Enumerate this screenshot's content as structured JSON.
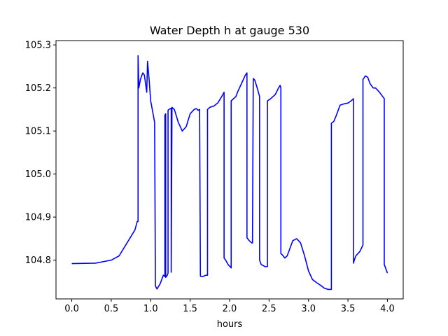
{
  "chart_data": {
    "type": "line",
    "title": "Water Depth h at gauge 530",
    "xlabel": "hours",
    "ylabel": "",
    "xlim": [
      -0.2,
      4.2
    ],
    "ylim": [
      104.71,
      105.31
    ],
    "x_ticks": [
      0.0,
      0.5,
      1.0,
      1.5,
      2.0,
      2.5,
      3.0,
      3.5,
      4.0
    ],
    "x_tick_labels": [
      "0.0",
      "0.5",
      "1.0",
      "1.5",
      "2.0",
      "2.5",
      "3.0",
      "3.5",
      "4.0"
    ],
    "y_ticks": [
      104.8,
      104.9,
      105.0,
      105.1,
      105.2,
      105.3
    ],
    "y_tick_labels": [
      "104.8",
      "104.9",
      "105.0",
      "105.1",
      "105.2",
      "105.3"
    ],
    "grid": false,
    "legend": "none",
    "series": [
      {
        "color": "#0000ff",
        "x": [
          0.0,
          0.3,
          0.5,
          0.6,
          0.7,
          0.8,
          0.83,
          0.84,
          0.84,
          0.85,
          0.87,
          0.9,
          0.92,
          0.95,
          0.96,
          0.98,
          1.0,
          1.05,
          1.06,
          1.08,
          1.12,
          1.16,
          1.18,
          1.18,
          1.19,
          1.19,
          1.21,
          1.22,
          1.22,
          1.23,
          1.25,
          1.26,
          1.26,
          1.27,
          1.3,
          1.35,
          1.4,
          1.45,
          1.5,
          1.55,
          1.58,
          1.6,
          1.62,
          1.63,
          1.64,
          1.66,
          1.7,
          1.72,
          1.72,
          1.75,
          1.8,
          1.85,
          1.9,
          1.93,
          1.93,
          1.95,
          1.98,
          2.02,
          2.02,
          2.05,
          2.08,
          2.1,
          2.15,
          2.2,
          2.22,
          2.22,
          2.25,
          2.28,
          2.29,
          2.3,
          2.32,
          2.35,
          2.38,
          2.38,
          2.4,
          2.45,
          2.48,
          2.48,
          2.52,
          2.55,
          2.58,
          2.62,
          2.64,
          2.65,
          2.65,
          2.67,
          2.7,
          2.73,
          2.76,
          2.8,
          2.85,
          2.9,
          2.95,
          3.0,
          3.05,
          3.1,
          3.15,
          3.2,
          3.25,
          3.28,
          3.29,
          3.29,
          3.32,
          3.35,
          3.38,
          3.4,
          3.45,
          3.5,
          3.54,
          3.57,
          3.57,
          3.58,
          3.6,
          3.65,
          3.69,
          3.69,
          3.7,
          3.72,
          3.75,
          3.78,
          3.82,
          3.85,
          3.9,
          3.94,
          3.96,
          3.96,
          3.98,
          4.0
        ],
        "y": [
          104.792,
          104.793,
          104.8,
          104.81,
          104.84,
          104.87,
          104.89,
          104.89,
          105.275,
          105.2,
          105.22,
          105.235,
          105.23,
          105.19,
          105.262,
          105.22,
          105.17,
          105.12,
          104.74,
          104.733,
          104.745,
          104.765,
          104.762,
          105.137,
          105.14,
          104.76,
          104.765,
          104.77,
          105.148,
          105.15,
          105.152,
          105.153,
          104.772,
          105.155,
          105.15,
          105.12,
          105.1,
          105.11,
          105.14,
          105.15,
          105.152,
          105.148,
          105.15,
          104.763,
          104.762,
          104.762,
          104.765,
          104.765,
          105.15,
          105.155,
          105.158,
          105.165,
          105.18,
          105.19,
          104.805,
          104.8,
          104.79,
          104.782,
          105.17,
          105.175,
          105.18,
          105.19,
          105.21,
          105.23,
          105.235,
          104.852,
          104.845,
          104.84,
          104.84,
          105.222,
          105.218,
          105.2,
          105.18,
          104.8,
          104.79,
          104.785,
          104.785,
          105.17,
          105.175,
          105.18,
          105.185,
          105.2,
          105.206,
          105.2,
          104.815,
          104.812,
          104.805,
          104.81,
          104.825,
          104.845,
          104.85,
          104.84,
          104.81,
          104.775,
          104.755,
          104.748,
          104.742,
          104.735,
          104.732,
          104.732,
          104.732,
          105.118,
          105.122,
          105.135,
          105.15,
          105.16,
          105.163,
          105.165,
          105.17,
          105.175,
          104.793,
          104.8,
          104.81,
          104.82,
          104.835,
          105.22,
          105.222,
          105.228,
          105.225,
          105.21,
          105.2,
          105.2,
          105.19,
          105.18,
          105.175,
          104.79,
          104.78,
          104.77
        ]
      }
    ]
  }
}
